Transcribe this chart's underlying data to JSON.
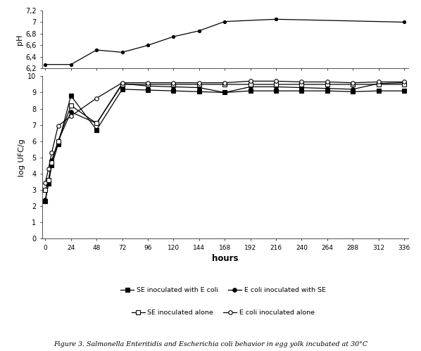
{
  "hours": [
    0,
    3,
    6,
    12,
    24,
    48,
    72,
    96,
    120,
    144,
    168,
    192,
    216,
    240,
    264,
    288,
    312,
    336
  ],
  "ph_hours": [
    0,
    24,
    48,
    72,
    96,
    120,
    144,
    168,
    216,
    336
  ],
  "ph_values": [
    6.27,
    6.27,
    6.52,
    6.48,
    6.6,
    6.75,
    6.85,
    7.01,
    7.05,
    7.0
  ],
  "se_with_ecoli": [
    2.3,
    3.4,
    4.5,
    5.8,
    8.8,
    6.7,
    9.2,
    9.15,
    9.1,
    9.05,
    9.0,
    9.1,
    9.1,
    9.1,
    9.1,
    9.05,
    9.1,
    9.1
  ],
  "ecoli_with_se": [
    2.4,
    3.5,
    4.8,
    6.0,
    7.8,
    7.1,
    9.55,
    9.4,
    9.35,
    9.3,
    9.0,
    9.35,
    9.35,
    9.3,
    9.25,
    9.2,
    9.55,
    9.6
  ],
  "se_alone": [
    3.0,
    3.6,
    4.7,
    6.0,
    8.2,
    7.1,
    9.5,
    9.5,
    9.5,
    9.5,
    9.5,
    9.5,
    9.5,
    9.5,
    9.5,
    9.5,
    9.5,
    9.5
  ],
  "ecoli_alone": [
    3.45,
    4.3,
    5.3,
    6.95,
    7.55,
    8.65,
    9.6,
    9.6,
    9.6,
    9.6,
    9.6,
    9.7,
    9.7,
    9.65,
    9.65,
    9.6,
    9.65,
    9.65
  ],
  "xlabel": "hours",
  "ylabel_ph": "pH",
  "ylabel_ufc": "log UFC/g",
  "ph_ylim": [
    6.2,
    7.2
  ],
  "ph_yticks": [
    6.2,
    6.4,
    6.6,
    6.8,
    7.0,
    7.2
  ],
  "ph_ytick_labels": [
    "6,2",
    "6,4",
    "6,6",
    "6,8",
    "7",
    "7,2"
  ],
  "ufc_ylim": [
    0,
    10
  ],
  "ufc_yticks": [
    0,
    1,
    2,
    3,
    4,
    5,
    6,
    7,
    8,
    9,
    10
  ],
  "xticks": [
    0,
    24,
    48,
    72,
    96,
    120,
    144,
    168,
    192,
    216,
    240,
    264,
    288,
    312,
    336
  ],
  "legend_entries": [
    "SE inoculated with E coli",
    "E coli inoculated with SE",
    "SE inoculated alone",
    "E coli inoculated alone"
  ],
  "line_color": "#000000",
  "background_color": "#ffffff",
  "caption_normal": "Figure 3. ",
  "caption_italic": "Salmonella",
  "caption_italic2": "Escherichia coli",
  "caption_full": "Figure 3. Salmonella Enteritidis and Escherichia coli behavior in egg yolk incubated at 30°C"
}
